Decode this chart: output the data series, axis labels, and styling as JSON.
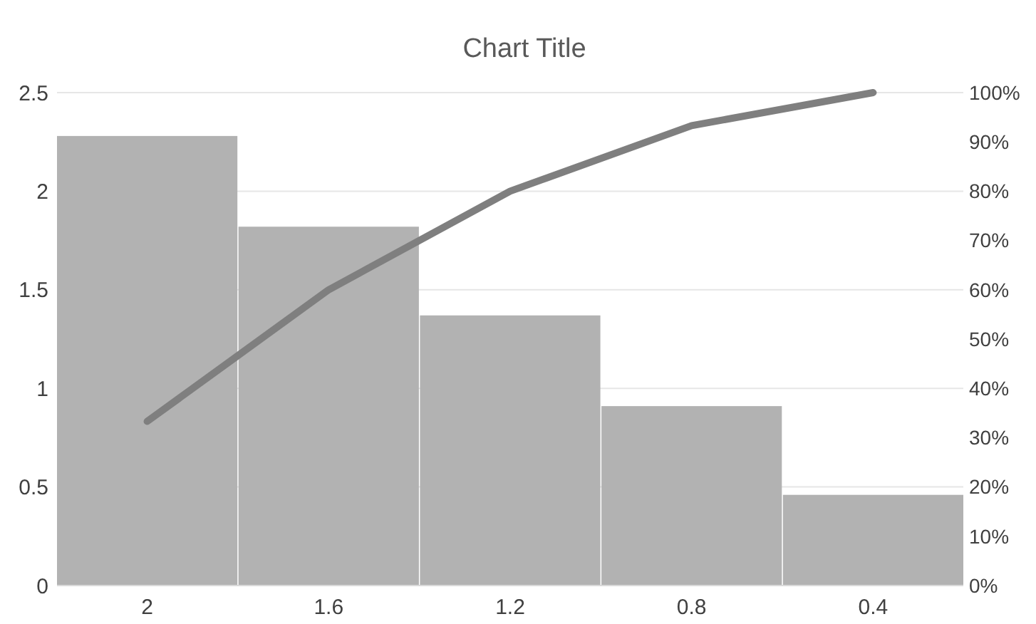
{
  "chart_data": {
    "type": "bar",
    "title": "Chart Title",
    "categories": [
      "2",
      "1.6",
      "1.2",
      "0.8",
      "0.4"
    ],
    "series": [
      {
        "color": "#b2b2b2",
        "values": [
          2.28,
          1.82,
          1.37,
          0.91,
          0.46
        ]
      },
      {
        "type": "line",
        "axis": "y2",
        "color": "#7f7f7f",
        "values": [
          33.3,
          60,
          80,
          93.3,
          100
        ]
      }
    ],
    "ylim": [
      0,
      2.5
    ],
    "yticks": [
      0,
      0.5,
      1,
      1.5,
      2,
      2.5
    ],
    "y2lim": [
      0,
      100
    ],
    "y2ticks": [
      {
        "value": 0,
        "label": "0%"
      },
      {
        "value": 10,
        "label": "10%"
      },
      {
        "value": 20,
        "label": "20%"
      },
      {
        "value": 30,
        "label": "30%"
      },
      {
        "value": 40,
        "label": "40%"
      },
      {
        "value": 50,
        "label": "50%"
      },
      {
        "value": 60,
        "label": "60%"
      },
      {
        "value": 70,
        "label": "70%"
      },
      {
        "value": 80,
        "label": "80%"
      },
      {
        "value": 90,
        "label": "90%"
      },
      {
        "value": 100,
        "label": "100%"
      }
    ],
    "grid": "y",
    "marker": "none",
    "line_style": "solid"
  }
}
